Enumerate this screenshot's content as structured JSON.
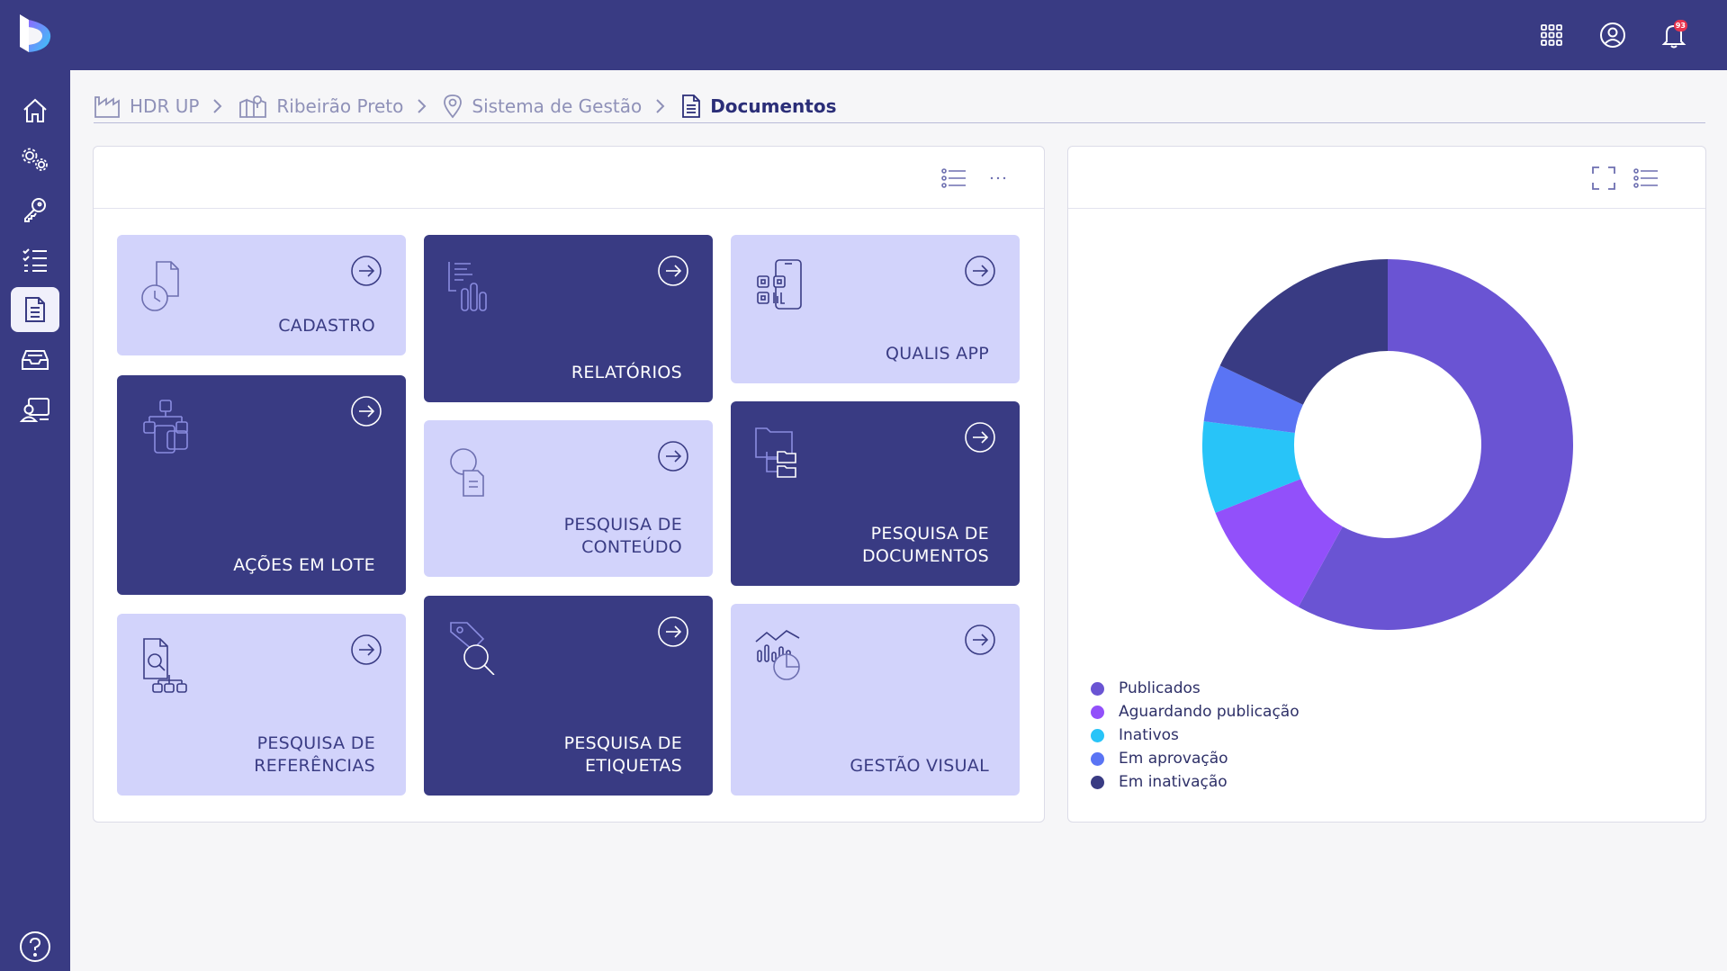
{
  "topbar": {
    "icons": [
      "apps-grid-icon",
      "user-circle-icon",
      "bell-icon"
    ],
    "notification_count": "93"
  },
  "sidebar": {
    "items": [
      "home-icon",
      "settings-gears-icon",
      "key-icon",
      "checklist-icon",
      "document-icon",
      "inbox-tray-icon",
      "user-board-icon"
    ],
    "active_index": 4,
    "help_icon": "help-circle-icon"
  },
  "breadcrumb": {
    "items": [
      {
        "label": "HDR UP",
        "icon": "factory-icon"
      },
      {
        "label": "Ribeirão Preto",
        "icon": "map-icon"
      },
      {
        "label": "Sistema de Gestão",
        "icon": "location-pin-icon"
      },
      {
        "label": "Documentos",
        "icon": "document-icon"
      }
    ]
  },
  "tiles": [
    {
      "label": "CADASTRO",
      "icon": "document-clock-icon",
      "theme": "light"
    },
    {
      "label": "AÇÕES EM LOTE",
      "icon": "org-tree-icon",
      "theme": "dark"
    },
    {
      "label": "PESQUISA DE\nREFERÊNCIAS",
      "icon": "document-search-network-icon",
      "theme": "light"
    },
    {
      "label": "RELATÓRIOS",
      "icon": "report-bars-icon",
      "theme": "dark"
    },
    {
      "label": "PESQUISA DE\nCONTEÚDO",
      "icon": "content-search-icon",
      "theme": "light"
    },
    {
      "label": "PESQUISA DE\nETIQUETAS",
      "icon": "tag-search-icon",
      "theme": "dark"
    },
    {
      "label": "QUALIS APP",
      "icon": "mobile-qr-icon",
      "theme": "light"
    },
    {
      "label": "PESQUISA DE\nDOCUMENTOS",
      "icon": "folders-icon",
      "theme": "dark"
    },
    {
      "label": "GESTÃO VISUAL",
      "icon": "chart-trend-icon",
      "theme": "light"
    }
  ],
  "left_panel_actions": [
    "list-view-icon",
    "more-dots-icon"
  ],
  "right_panel_actions": [
    "fullscreen-icon",
    "list-view-icon"
  ],
  "chart_data": {
    "type": "pie",
    "donut": true,
    "series": [
      {
        "name": "Publicados",
        "value": 58,
        "color": "#6a54d3"
      },
      {
        "name": "Aguardando publicação",
        "value": 11,
        "color": "#9250fa"
      },
      {
        "name": "Inativos",
        "value": 8,
        "color": "#28c4f8"
      },
      {
        "name": "Em aprovação",
        "value": 5,
        "color": "#5a74f4"
      },
      {
        "name": "Em inativação",
        "value": 18,
        "color": "#393b83"
      }
    ],
    "legend_position": "bottom-left"
  }
}
